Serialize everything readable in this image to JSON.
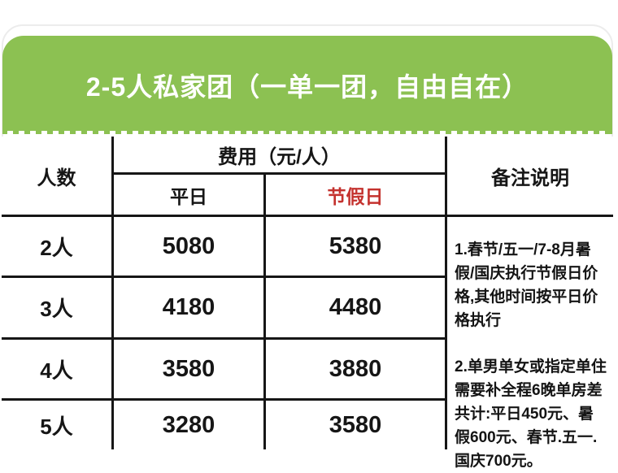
{
  "banner": {
    "title": "2-5人私家团（一单一团，自由自在）",
    "bg_color": "#8cc152",
    "text_color": "#ffffff"
  },
  "table": {
    "headers": {
      "people": "人数",
      "fee": "费用（元/人）",
      "weekday": "平日",
      "holiday": "节假日",
      "notes": "备注说明"
    },
    "holiday_color": "#c4322e",
    "rows": [
      {
        "people": "2人",
        "weekday": "5080",
        "holiday": "5380"
      },
      {
        "people": "3人",
        "weekday": "4180",
        "holiday": "4480"
      },
      {
        "people": "4人",
        "weekday": "3580",
        "holiday": "3880"
      },
      {
        "people": "5人",
        "weekday": "3280",
        "holiday": "3580"
      }
    ],
    "notes": [
      "1.春节/五一/7-8月暑假/国庆执行节假日价格,其他时间按平日价格执行",
      "2.单男单女或指定单住需要补全程6晚单房差共计:平日450元、暑假600元、春节.五一.国庆700元。"
    ]
  }
}
